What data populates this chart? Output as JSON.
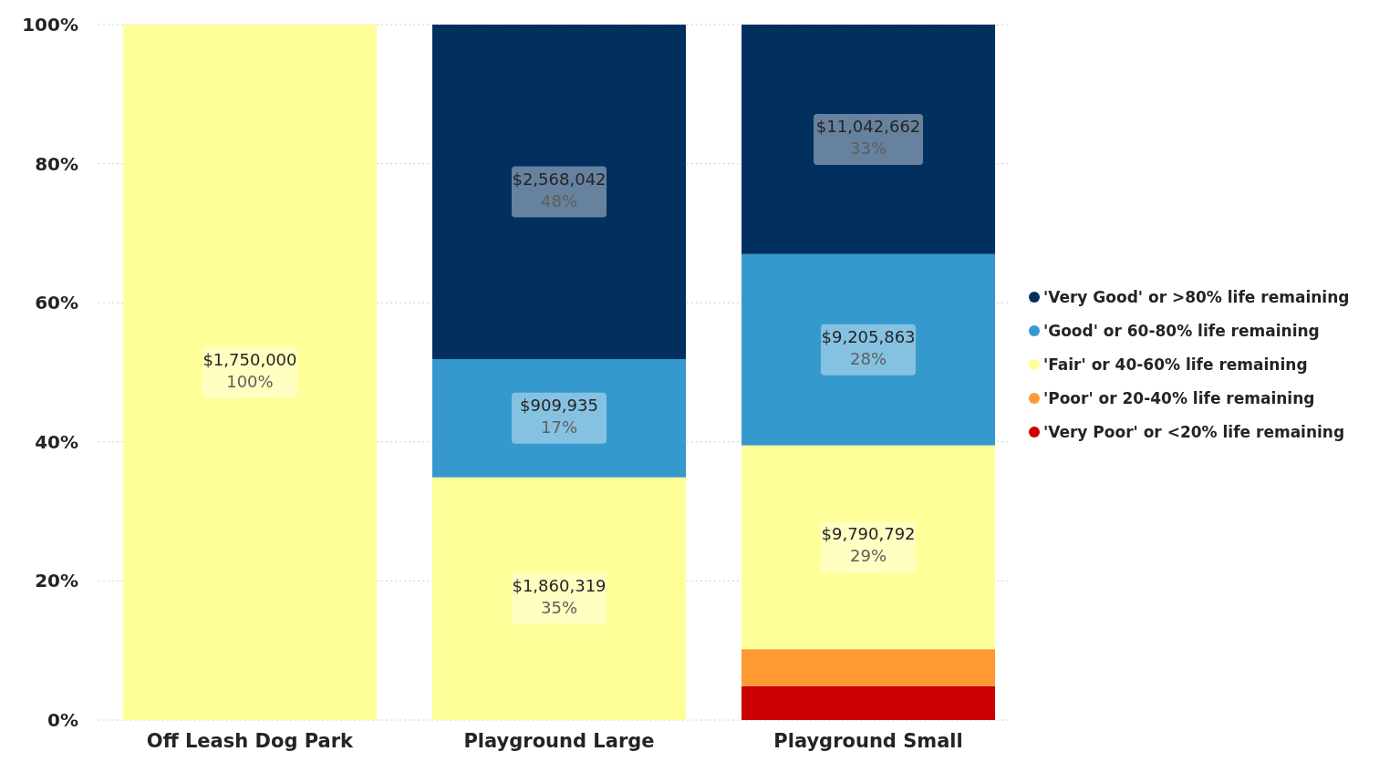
{
  "chart_data": {
    "type": "bar",
    "stacked": true,
    "categories": [
      "Off Leash Dog Park",
      "Playground Large",
      "Playground Small"
    ],
    "ylim": [
      0,
      100
    ],
    "yticks": [
      {
        "value": 0,
        "label": "0%"
      },
      {
        "value": 20,
        "label": "20%"
      },
      {
        "value": 40,
        "label": "40%"
      },
      {
        "value": 60,
        "label": "60%"
      },
      {
        "value": 80,
        "label": "80%"
      },
      {
        "value": 100,
        "label": "100%"
      }
    ],
    "grid": "y",
    "legend": "right",
    "series": [
      {
        "name": "'Very Poor' or <20% life remaining",
        "color": "#cc0000",
        "values": [
          null,
          null,
          4.9
        ],
        "value_labels": [
          null,
          null,
          null
        ]
      },
      {
        "name": "'Poor' or 20-40% life remaining",
        "color": "#fe9933",
        "values": [
          null,
          null,
          5.3
        ],
        "value_labels": [
          null,
          null,
          null
        ]
      },
      {
        "name": "'Fair' or 40-60% life remaining",
        "color": "#ffff99",
        "values": [
          100,
          34.9,
          29.3
        ],
        "value_labels": [
          "$1,750,000\n100%",
          "$1,860,319\n35%",
          "$9,790,792\n29%"
        ]
      },
      {
        "name": "'Good' or 60-80% life remaining",
        "color": "#3599cd",
        "values": [
          null,
          17.0,
          27.5
        ],
        "value_labels": [
          null,
          "$909,935\n17%",
          "$9,205,863\n28%"
        ]
      },
      {
        "name": "'Very Good' or >80% life remaining",
        "color": "#01305f",
        "values": [
          null,
          48.1,
          33.0
        ],
        "value_labels": [
          null,
          "$2,568,042\n48%",
          "$11,042,662\n33%"
        ]
      }
    ]
  }
}
